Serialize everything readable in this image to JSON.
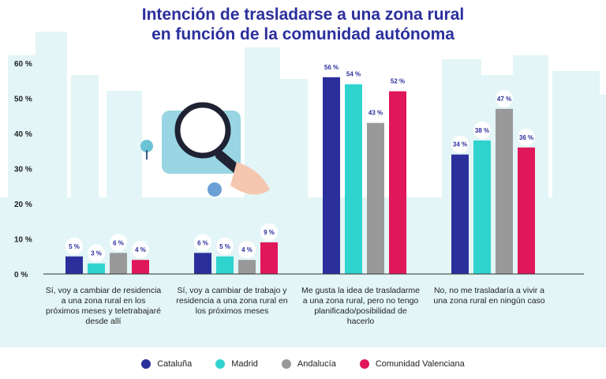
{
  "chart_data": {
    "type": "bar",
    "title_line1": "Intención de trasladarse a una zona rural",
    "title_line2": "en función de la comunidad autónoma",
    "y_ticks": [
      "0 %",
      "10 %",
      "20 %",
      "30 %",
      "40 %",
      "50 %",
      "60 %"
    ],
    "ylim": [
      0,
      60
    ],
    "categories": [
      "Sí, voy a cambiar de residencia a una zona rural en los próximos meses y teletrabajaré desde allí",
      "Sí, voy a cambiar de trabajo y residencia a una zona rural en los próximos meses",
      "Me gusta la idea de trasladarme a una zona rural, pero no tengo planificado/posibilidad de hacerlo",
      "No, no me trasladaría a vivir a una zona rural en ningún caso"
    ],
    "series": [
      {
        "name": "Cataluña",
        "color": "#2b2f9c",
        "values": [
          5,
          6,
          56,
          34
        ],
        "labels": [
          "5 %",
          "6 %",
          "56 %",
          "34 %"
        ]
      },
      {
        "name": "Madrid",
        "color": "#2fd4cf",
        "values": [
          3,
          5,
          54,
          38
        ],
        "labels": [
          "3 %",
          "5 %",
          "54 %",
          "38 %"
        ]
      },
      {
        "name": "Andalucía",
        "color": "#999999",
        "values": [
          6,
          4,
          43,
          47
        ],
        "labels": [
          "6 %",
          "4 %",
          "43 %",
          "47 %"
        ]
      },
      {
        "name": "Comunidad Valenciana",
        "color": "#e0175a",
        "values": [
          4,
          9,
          52,
          36
        ],
        "labels": [
          "4 %",
          "9 %",
          "52 %",
          "36 %"
        ]
      }
    ],
    "grid": false,
    "legend_position": "bottom"
  }
}
